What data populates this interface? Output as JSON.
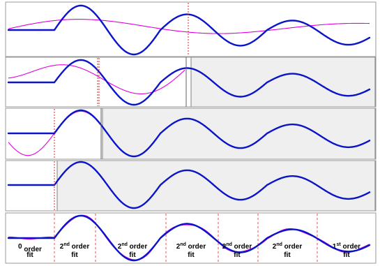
{
  "colors": {
    "signal": "#0a14c8",
    "fit": "#e000e0",
    "marker": "#e02020",
    "shade": "#efefef"
  },
  "fit_labels": [
    {
      "order": "0",
      "suffix": "",
      "word": "order",
      "second": "fit"
    },
    {
      "order": "2",
      "suffix": "nd",
      "word": "order",
      "second": "fit"
    },
    {
      "order": "2",
      "suffix": "nd",
      "word": "order",
      "second": "fit"
    },
    {
      "order": "2",
      "suffix": "nd",
      "word": "order",
      "second": "fit"
    },
    {
      "order": "2",
      "suffix": "nd",
      "word": "order",
      "second": "fit"
    },
    {
      "order": "2",
      "suffix": "nd",
      "word": "order",
      "second": "fit"
    },
    {
      "order": "1",
      "suffix": "st",
      "word": "order",
      "second": "fit"
    }
  ]
}
